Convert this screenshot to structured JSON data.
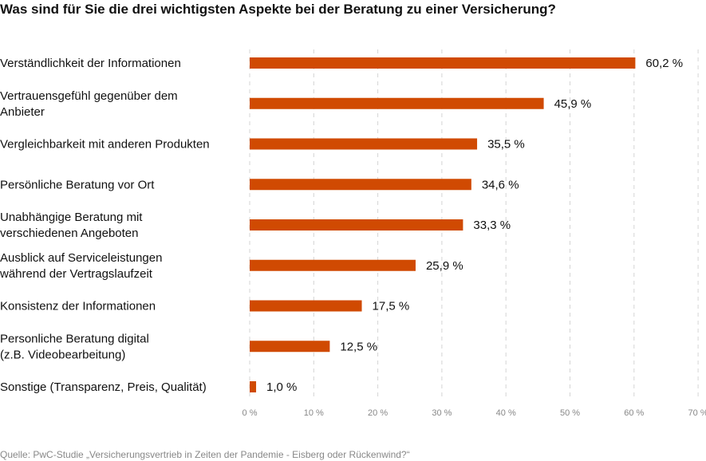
{
  "chart_data": {
    "type": "bar",
    "orientation": "horizontal",
    "title": "Was sind für Sie die drei wichtigsten Aspekte bei der Beratung zu einer Versicherung?",
    "categories": [
      [
        "Verständlichkeit der Informationen"
      ],
      [
        "Vertrauensgefühl gegenüber dem",
        "Anbieter"
      ],
      [
        "Vergleichbarkeit mit anderen Produkten"
      ],
      [
        "Persönliche Beratung vor Ort"
      ],
      [
        "Unabhängige Beratung mit",
        "verschiedenen Angeboten"
      ],
      [
        "Ausblick auf Serviceleistungen",
        "während der Vertragslaufzeit"
      ],
      [
        "Konsistenz der Informationen"
      ],
      [
        "Personliche Beratung digital",
        "(z.B. Videobearbeitung)"
      ],
      [
        "Sonstige (Transparenz, Preis, Qualität)"
      ]
    ],
    "values": [
      60.2,
      45.9,
      35.5,
      34.6,
      33.3,
      25.9,
      17.5,
      12.5,
      1.0
    ],
    "value_labels": [
      "60,2 %",
      "45,9 %",
      "35,5 %",
      "34,6 %",
      "33,3 %",
      "25,9 %",
      "17,5 %",
      "12,5 %",
      "1,0 %"
    ],
    "xlim": [
      0,
      70
    ],
    "ticks": [
      0,
      10,
      20,
      30,
      40,
      50,
      60,
      70
    ],
    "tick_labels": [
      "0 %",
      "10 %",
      "20 %",
      "30 %",
      "40 %",
      "50 %",
      "60 %",
      "70 %"
    ],
    "grid": true,
    "bar_color": "#d04a02",
    "source": "Quelle: PwC-Studie „Versicherungsvertrieb in Zeiten der Pandemie - Eisberg oder Rückenwind?“"
  }
}
